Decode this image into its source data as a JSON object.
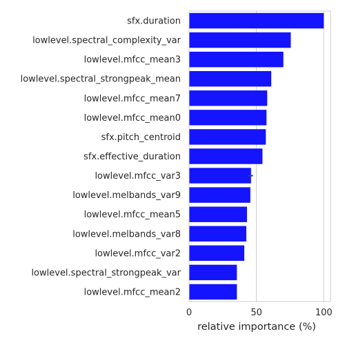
{
  "chart_data": {
    "type": "bar",
    "orientation": "horizontal",
    "categories": [
      "sfx.duration",
      "lowlevel.spectral_complexity_var",
      "lowlevel.mfcc_mean3",
      "lowlevel.spectral_strongpeak_mean",
      "lowlevel.mfcc_mean7",
      "lowlevel.mfcc_mean0",
      "sfx.pitch_centroid",
      "sfx.effective_duration",
      "lowlevel.mfcc_var3",
      "lowlevel.melbands_var9",
      "lowlevel.mfcc_mean5",
      "lowlevel.melbands_var8",
      "lowlevel.mfcc_var2",
      "lowlevel.spectral_strongpeak_var",
      "lowlevel.mfcc_mean2"
    ],
    "values": [
      100,
      75.5,
      70,
      61,
      58,
      57.5,
      57,
      54.5,
      46,
      45.5,
      43,
      42.5,
      41,
      35.5,
      35.5
    ],
    "error_bars": [
      {
        "category": "lowlevel.mfcc_var3",
        "low": 44.5,
        "high": 47
      }
    ],
    "xlabel": "relative importance (%)",
    "ylabel": "",
    "title": "",
    "xlim": [
      0,
      105
    ],
    "xticks": [
      0,
      50,
      100
    ],
    "grid": "vertical",
    "bar_color": "#1414ff",
    "errorbar_color": "#424242"
  }
}
